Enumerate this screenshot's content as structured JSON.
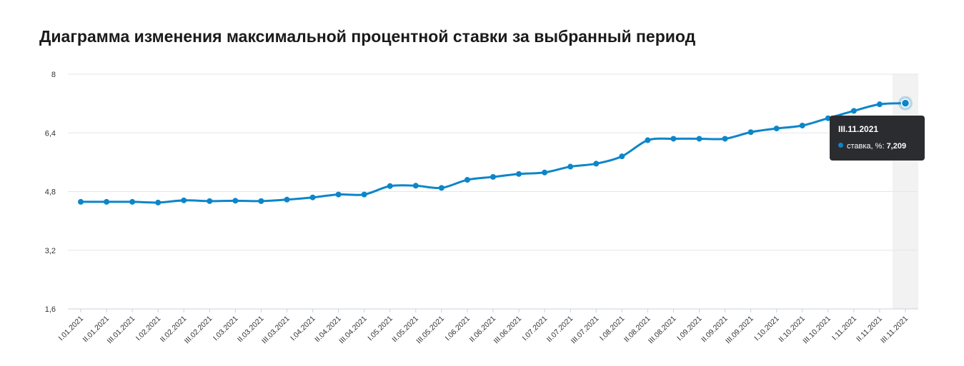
{
  "title": "Диаграмма изменения максимальной процентной ставки за выбранный период",
  "colors": {
    "line": "#0c86c9",
    "grid": "#e6e6e6",
    "highlight": "#f2f2f2",
    "tooltip_bg": "#2b2c30"
  },
  "chart_data": {
    "type": "line",
    "title": "Диаграмма изменения максимальной процентной ставки за выбранный период",
    "xlabel": "",
    "ylabel": "",
    "ylim": [
      1.6,
      8
    ],
    "yticks": [
      "8",
      "6,4",
      "4,8",
      "3,2",
      "1,6"
    ],
    "ytick_values": [
      8,
      6.4,
      4.8,
      3.2,
      1.6
    ],
    "grid": "horizontal",
    "categories": [
      "I.01.2021",
      "II.01.2021",
      "III.01.2021",
      "I.02.2021",
      "II.02.2021",
      "III.02.2021",
      "I.03.2021",
      "II.03.2021",
      "III.03.2021",
      "I.04.2021",
      "II.04.2021",
      "III.04.2021",
      "I.05.2021",
      "II.05.2021",
      "III.05.2021",
      "I.06.2021",
      "II.06.2021",
      "III.06.2021",
      "I.07.2021",
      "II.07.2021",
      "III.07.2021",
      "I.08.2021",
      "II.08.2021",
      "III.08.2021",
      "I.09.2021",
      "II.09.2021",
      "III.09.2021",
      "I.10.2021",
      "II.10.2021",
      "III.10.2021",
      "I.11.2021",
      "II.11.2021",
      "III.11.2021"
    ],
    "series": [
      {
        "name": "ставка, %",
        "values": [
          4.52,
          4.52,
          4.52,
          4.5,
          4.56,
          4.54,
          4.55,
          4.54,
          4.58,
          4.64,
          4.72,
          4.72,
          4.95,
          4.96,
          4.9,
          5.12,
          5.2,
          5.28,
          5.32,
          5.48,
          5.56,
          5.76,
          6.2,
          6.24,
          6.24,
          6.24,
          6.42,
          6.52,
          6.6,
          6.8,
          7.0,
          7.18,
          7.209
        ]
      }
    ],
    "tooltip": {
      "category": "III.11.2021",
      "series_label": "ставка, %: ",
      "value": "7,209"
    }
  }
}
